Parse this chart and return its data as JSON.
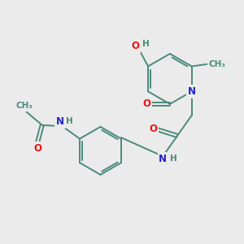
{
  "bg_color": "#ebebeb",
  "bond_color": "#4a8a7a",
  "atom_colors": {
    "O": "#ee1111",
    "N": "#2222cc",
    "H": "#4a8a7a",
    "C": "#4a8a7a"
  },
  "font_size": 8.5
}
